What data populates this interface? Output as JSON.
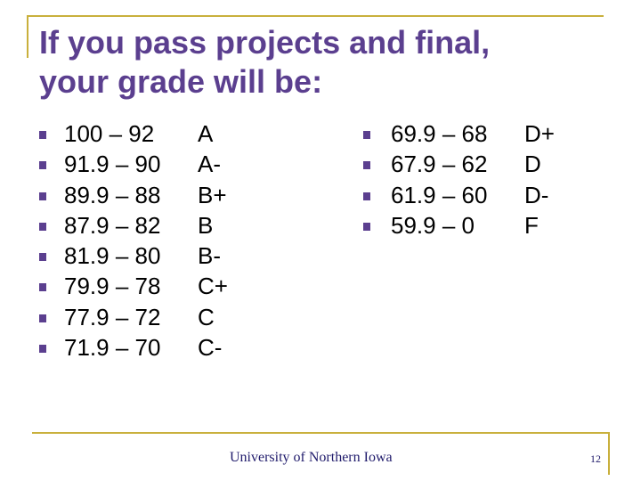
{
  "slide": {
    "title": "If you pass projects and final,\nyour grade will be:",
    "left_column": [
      {
        "range": "100 – 92",
        "grade": "A"
      },
      {
        "range": "91.9 – 90",
        "grade": "A-"
      },
      {
        "range": "89.9 – 88",
        "grade": "B+"
      },
      {
        "range": "87.9 – 82",
        "grade": "B"
      },
      {
        "range": "81.9 – 80",
        "grade": "B-"
      },
      {
        "range": "79.9 – 78",
        "grade": "C+"
      },
      {
        "range": "77.9 – 72",
        "grade": "C"
      },
      {
        "range": "71.9 – 70",
        "grade": "C-"
      }
    ],
    "right_column": [
      {
        "range": "69.9 – 68",
        "grade": "D+"
      },
      {
        "range": "67.9 – 62",
        "grade": "D"
      },
      {
        "range": "61.9 – 60",
        "grade": "D-"
      },
      {
        "range": "59.9 – 0",
        "grade": "F"
      }
    ],
    "footer": "University of Northern Iowa",
    "page_number": "12"
  },
  "colors": {
    "title": "#5b3f8f",
    "bullet": "#5b3f8f",
    "rule": "#c9b03c",
    "footer": "#1f1a6b"
  },
  "icons": {
    "bullet": "square-bullet-icon"
  }
}
